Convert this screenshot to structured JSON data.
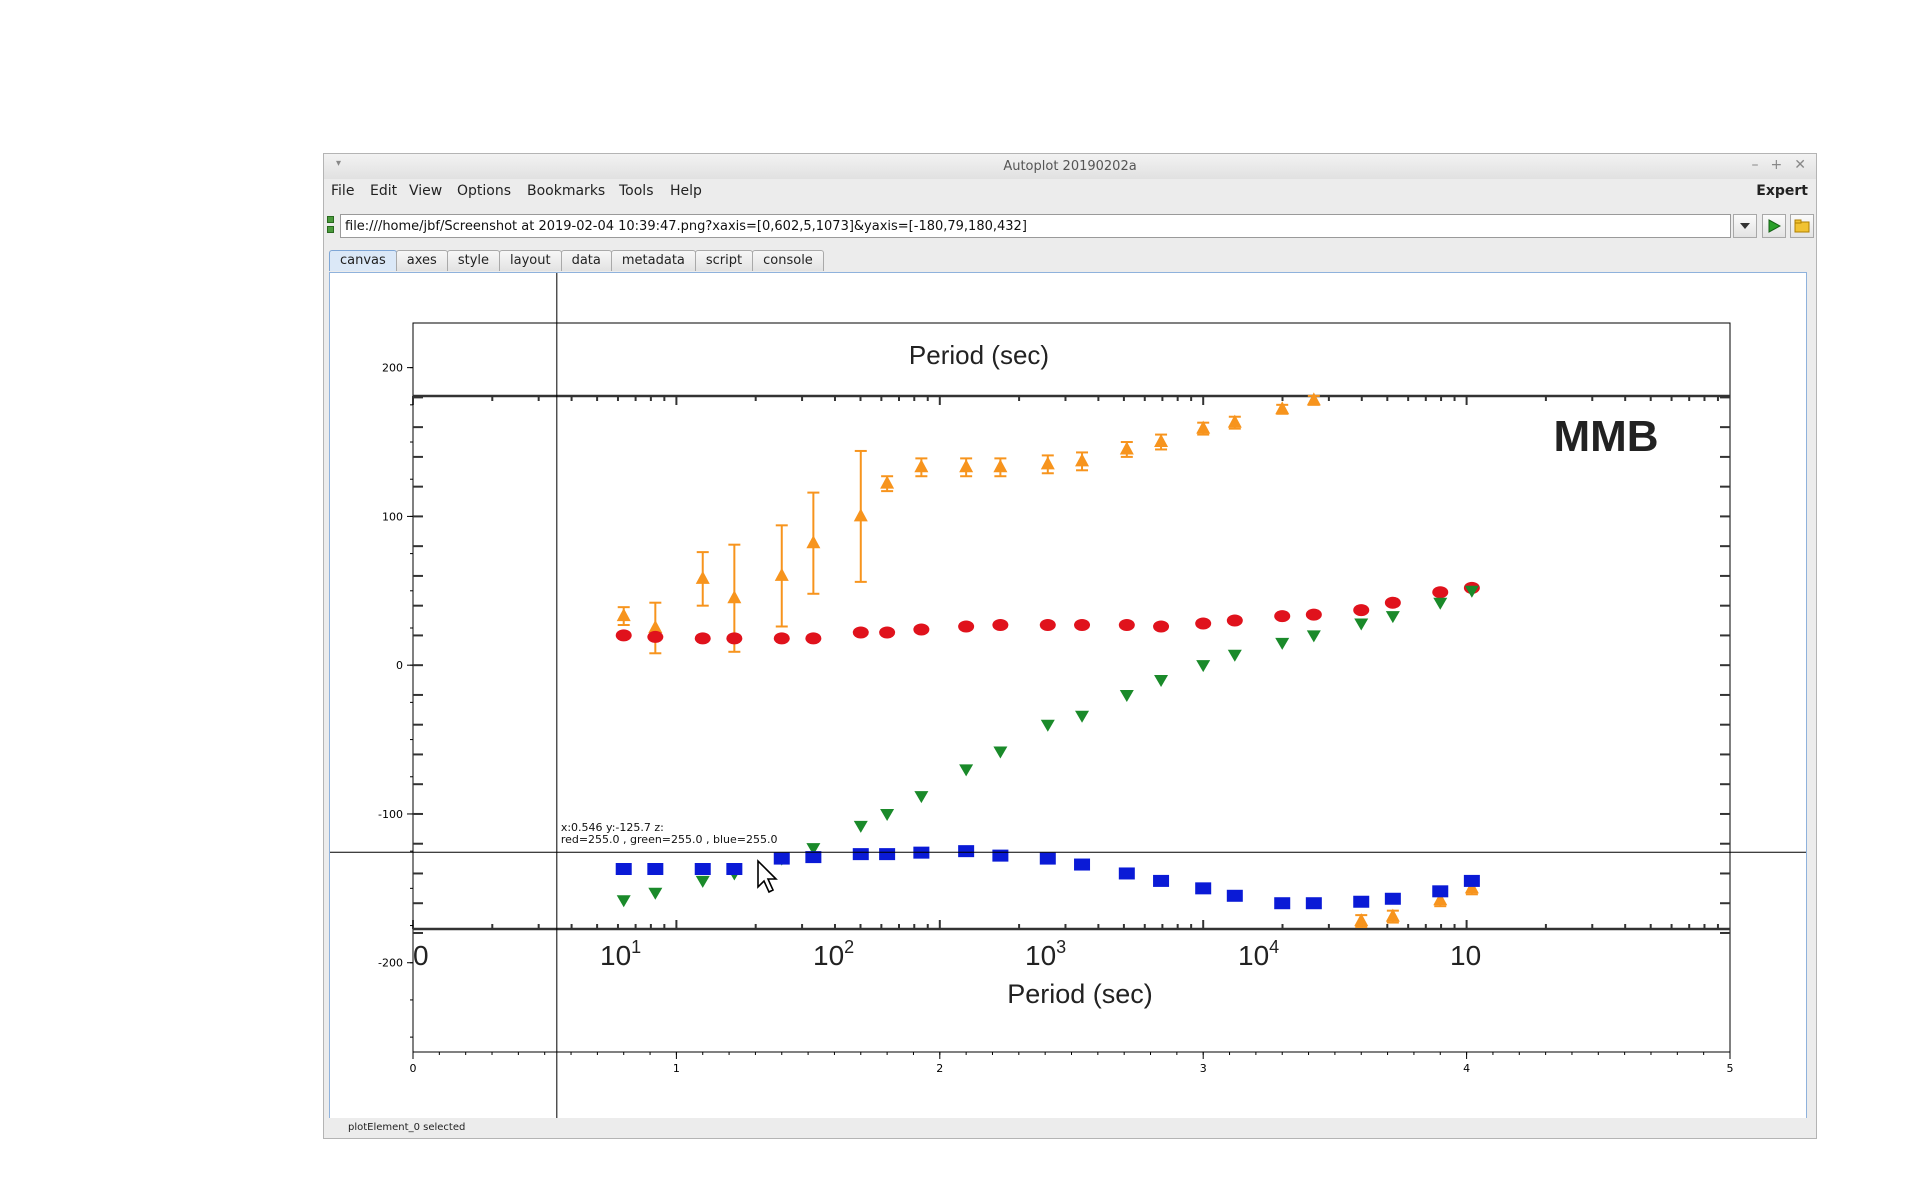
{
  "window": {
    "title": "Autoplot 20190202a"
  },
  "menu": {
    "items": [
      "File",
      "Edit",
      "View",
      "Options",
      "Bookmarks",
      "Tools",
      "Help"
    ],
    "expert": "Expert"
  },
  "url": {
    "value": "file:///home/jbf/Screenshot at 2019-02-04 10:39:47.png?xaxis=[0,602,5,1073]&yaxis=[-180,79,180,432]"
  },
  "tabs": [
    "canvas",
    "axes",
    "style",
    "layout",
    "data",
    "metadata",
    "script",
    "console"
  ],
  "status": {
    "text": "plotElement_0 selected"
  },
  "readout": {
    "line1": "x:0.546  y:-125.7  z:",
    "line2": "red=255.0 , green=255.0 , blue=255.0"
  },
  "image": {
    "top_axis_title": "Period (sec)",
    "label": "MMB",
    "bottom_axis_title": "Period (sec)",
    "bottom_ticks": [
      "0",
      "1",
      "1",
      "1",
      "1",
      "1"
    ],
    "bottom_exps": [
      "0",
      "1",
      "2",
      "3",
      "4",
      ""
    ],
    "colors": {
      "orange": "#f7941d",
      "red": "#e0121c",
      "green": "#1a8a2a",
      "blue": "#0a1ad6"
    }
  },
  "chart_data": {
    "type": "scatter",
    "x_ticks": [
      "0",
      "1",
      "2",
      "3",
      "4",
      "5"
    ],
    "y_ticks": [
      "200",
      "100",
      "0",
      "-100",
      "-200"
    ],
    "xlim": [
      0,
      5
    ],
    "ylim": [
      -260,
      230
    ],
    "crosshair": {
      "x": 0.546,
      "y": -125.7
    },
    "series": [
      {
        "color": "orange",
        "marker": "triangle-up",
        "points": [
          [
            0.8,
            33,
            6
          ],
          [
            0.92,
            25,
            17
          ],
          [
            1.1,
            58,
            18
          ],
          [
            1.22,
            45,
            36
          ],
          [
            1.4,
            60,
            34
          ],
          [
            1.52,
            82,
            34
          ],
          [
            1.7,
            100,
            44
          ],
          [
            1.8,
            122,
            5
          ],
          [
            1.93,
            133,
            6
          ],
          [
            2.1,
            133,
            6
          ],
          [
            2.23,
            133,
            6
          ],
          [
            2.41,
            135,
            6
          ],
          [
            2.54,
            137,
            6
          ],
          [
            2.71,
            145,
            5
          ],
          [
            2.84,
            150,
            5
          ],
          [
            3.0,
            159,
            4
          ],
          [
            3.12,
            163,
            4
          ],
          [
            3.3,
            172,
            3
          ],
          [
            3.42,
            178,
            3
          ],
          [
            3.6,
            -172,
            4
          ],
          [
            3.72,
            -169,
            4
          ],
          [
            3.9,
            -158,
            4
          ],
          [
            4.02,
            -150,
            4
          ]
        ]
      },
      {
        "color": "red",
        "marker": "circle",
        "points": [
          [
            0.8,
            20
          ],
          [
            0.92,
            19
          ],
          [
            1.1,
            18
          ],
          [
            1.22,
            18
          ],
          [
            1.4,
            18
          ],
          [
            1.52,
            18
          ],
          [
            1.7,
            22
          ],
          [
            1.8,
            22
          ],
          [
            1.93,
            24
          ],
          [
            2.1,
            26
          ],
          [
            2.23,
            27
          ],
          [
            2.41,
            27
          ],
          [
            2.54,
            27
          ],
          [
            2.71,
            27
          ],
          [
            2.84,
            26
          ],
          [
            3.0,
            28
          ],
          [
            3.12,
            30
          ],
          [
            3.3,
            33
          ],
          [
            3.42,
            34
          ],
          [
            3.6,
            37
          ],
          [
            3.72,
            42
          ],
          [
            3.9,
            49
          ],
          [
            4.02,
            52
          ]
        ]
      },
      {
        "color": "green",
        "marker": "triangle-down",
        "points": [
          [
            0.8,
            -158
          ],
          [
            0.92,
            -153
          ],
          [
            1.1,
            -145
          ],
          [
            1.22,
            -140
          ],
          [
            1.4,
            -130
          ],
          [
            1.52,
            -123
          ],
          [
            1.7,
            -108
          ],
          [
            1.8,
            -100
          ],
          [
            1.93,
            -88
          ],
          [
            2.1,
            -70
          ],
          [
            2.23,
            -58
          ],
          [
            2.41,
            -40
          ],
          [
            2.54,
            -34
          ],
          [
            2.71,
            -20
          ],
          [
            2.84,
            -10
          ],
          [
            3.0,
            0
          ],
          [
            3.12,
            7
          ],
          [
            3.3,
            15
          ],
          [
            3.42,
            20
          ],
          [
            3.6,
            28
          ],
          [
            3.72,
            33
          ],
          [
            3.9,
            42
          ],
          [
            4.02,
            50
          ]
        ]
      },
      {
        "color": "blue",
        "marker": "square",
        "points": [
          [
            0.8,
            -137
          ],
          [
            0.92,
            -137
          ],
          [
            1.1,
            -137
          ],
          [
            1.22,
            -137
          ],
          [
            1.4,
            -130
          ],
          [
            1.52,
            -129
          ],
          [
            1.7,
            -127
          ],
          [
            1.8,
            -127
          ],
          [
            1.93,
            -126
          ],
          [
            2.1,
            -125
          ],
          [
            2.23,
            -128
          ],
          [
            2.41,
            -130
          ],
          [
            2.54,
            -134
          ],
          [
            2.71,
            -140
          ],
          [
            2.84,
            -145
          ],
          [
            3.0,
            -150
          ],
          [
            3.12,
            -155
          ],
          [
            3.3,
            -160
          ],
          [
            3.42,
            -160
          ],
          [
            3.6,
            -159
          ],
          [
            3.72,
            -157
          ],
          [
            3.9,
            -152
          ],
          [
            4.02,
            -145
          ]
        ]
      }
    ]
  }
}
